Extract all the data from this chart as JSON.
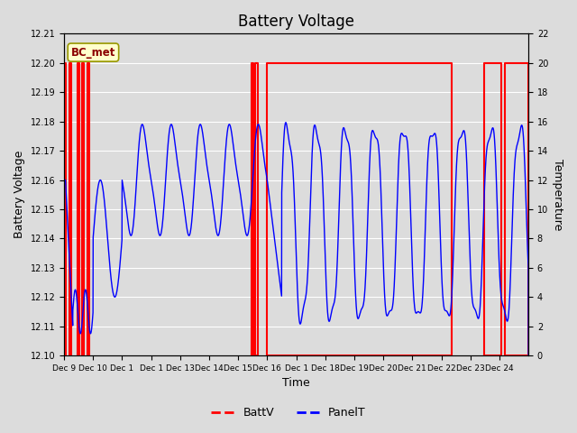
{
  "title": "Battery Voltage",
  "xlabel": "Time",
  "ylabel_left": "Battery Voltage",
  "ylabel_right": "Temperature",
  "annotation": "BC_met",
  "ylim_left": [
    12.1,
    12.21
  ],
  "ylim_right": [
    0,
    22
  ],
  "yticks_left": [
    12.1,
    12.11,
    12.12,
    12.13,
    12.14,
    12.15,
    12.16,
    12.17,
    12.18,
    12.19,
    12.2,
    12.21
  ],
  "yticks_right": [
    0,
    2,
    4,
    6,
    8,
    10,
    12,
    14,
    16,
    18,
    20,
    22
  ],
  "battv_color": "#FF0000",
  "panelt_color": "#0000FF",
  "bg_color": "#DCDCDC",
  "grid_color": "#FFFFFF",
  "title_fontsize": 12,
  "axis_label_fontsize": 9,
  "battv_segments": [
    [
      0.0,
      0.07
    ],
    [
      0.18,
      0.24
    ],
    [
      0.45,
      0.52
    ],
    [
      0.62,
      0.68
    ],
    [
      0.8,
      0.87
    ],
    [
      6.45,
      6.52
    ],
    [
      6.6,
      6.68
    ],
    [
      7.0,
      13.35
    ],
    [
      14.47,
      15.08
    ],
    [
      15.18,
      16.0
    ]
  ],
  "xtick_positions": [
    0,
    1,
    2,
    3,
    4,
    5,
    6,
    7,
    8,
    9,
    10,
    11,
    12,
    13,
    14,
    15
  ],
  "xtick_labels": [
    "Dec 9",
    "Dec 10",
    "Dec 1",
    "Dec 1",
    "Dec 13",
    "Dec 14",
    "Dec 15",
    "Dec 16",
    "Dec 1",
    "Dec 18",
    "Dec 19",
    "Dec 20",
    "Dec 21",
    "Dec 22",
    "Dec 23",
    "Dec 24"
  ]
}
